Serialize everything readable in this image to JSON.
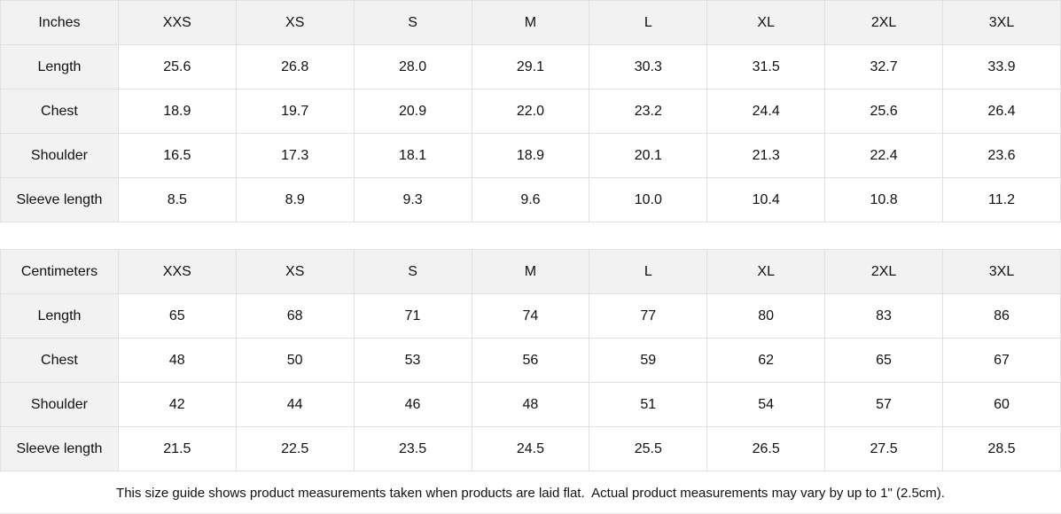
{
  "colors": {
    "header_bg": "#f2f2f2",
    "cell_bg": "#ffffff",
    "border": "#e0e0e0",
    "text": "#111111"
  },
  "tables": [
    {
      "unit_label": "Inches",
      "sizes": [
        "XXS",
        "XS",
        "S",
        "M",
        "L",
        "XL",
        "2XL",
        "3XL"
      ],
      "rows": [
        {
          "label": "Length",
          "values": [
            "25.6",
            "26.8",
            "28.0",
            "29.1",
            "30.3",
            "31.5",
            "32.7",
            "33.9"
          ]
        },
        {
          "label": "Chest",
          "values": [
            "18.9",
            "19.7",
            "20.9",
            "22.0",
            "23.2",
            "24.4",
            "25.6",
            "26.4"
          ]
        },
        {
          "label": "Shoulder",
          "values": [
            "16.5",
            "17.3",
            "18.1",
            "18.9",
            "20.1",
            "21.3",
            "22.4",
            "23.6"
          ]
        },
        {
          "label": "Sleeve length",
          "values": [
            "8.5",
            "8.9",
            "9.3",
            "9.6",
            "10.0",
            "10.4",
            "10.8",
            "11.2"
          ]
        }
      ]
    },
    {
      "unit_label": "Centimeters",
      "sizes": [
        "XXS",
        "XS",
        "S",
        "M",
        "L",
        "XL",
        "2XL",
        "3XL"
      ],
      "rows": [
        {
          "label": "Length",
          "values": [
            "65",
            "68",
            "71",
            "74",
            "77",
            "80",
            "83",
            "86"
          ]
        },
        {
          "label": "Chest",
          "values": [
            "48",
            "50",
            "53",
            "56",
            "59",
            "62",
            "65",
            "67"
          ]
        },
        {
          "label": "Shoulder",
          "values": [
            "42",
            "44",
            "46",
            "48",
            "51",
            "54",
            "57",
            "60"
          ]
        },
        {
          "label": "Sleeve length",
          "values": [
            "21.5",
            "22.5",
            "23.5",
            "24.5",
            "25.5",
            "26.5",
            "27.5",
            "28.5"
          ]
        }
      ]
    }
  ],
  "footer_note": "This size guide shows product measurements taken when products are laid flat.  Actual product measurements may vary by up to 1\" (2.5cm)."
}
